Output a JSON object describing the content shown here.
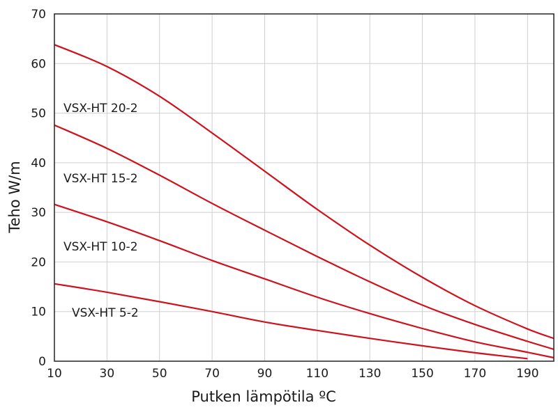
{
  "chart_data": {
    "type": "line",
    "title": "",
    "xlabel": "Putken lämpötila ºC",
    "ylabel": "Teho W/m",
    "xlim": [
      10,
      200
    ],
    "ylim": [
      0,
      70
    ],
    "xticks": [
      10,
      30,
      50,
      70,
      90,
      110,
      130,
      150,
      170,
      190
    ],
    "yticks": [
      0,
      10,
      20,
      30,
      40,
      50,
      60,
      70
    ],
    "grid": true,
    "line_color": "#d0111b",
    "series": [
      {
        "name": "VSX-HT 20-2",
        "x": [
          10,
          30,
          50,
          70,
          90,
          110,
          130,
          150,
          170,
          190,
          200
        ],
        "y": [
          63.8,
          59.4,
          53.4,
          46.0,
          38.3,
          30.6,
          23.4,
          16.9,
          11.2,
          6.5,
          4.6
        ]
      },
      {
        "name": "VSX-HT 15-2",
        "x": [
          10,
          30,
          50,
          70,
          90,
          110,
          130,
          150,
          170,
          190,
          200
        ],
        "y": [
          47.6,
          42.9,
          37.5,
          31.8,
          26.4,
          21.1,
          16.0,
          11.3,
          7.4,
          4.0,
          2.4
        ]
      },
      {
        "name": "VSX-HT 10-2",
        "x": [
          10,
          30,
          50,
          70,
          90,
          110,
          130,
          150,
          170,
          190,
          200
        ],
        "y": [
          31.6,
          28.1,
          24.3,
          20.3,
          16.6,
          12.9,
          9.6,
          6.6,
          3.9,
          1.8,
          0.7
        ]
      },
      {
        "name": "VSX-HT 5-2",
        "x": [
          10,
          30,
          50,
          70,
          90,
          110,
          130,
          150,
          170,
          190
        ],
        "y": [
          15.6,
          13.9,
          12.0,
          10.0,
          7.9,
          6.2,
          4.6,
          3.1,
          1.7,
          0.5
        ]
      }
    ]
  }
}
